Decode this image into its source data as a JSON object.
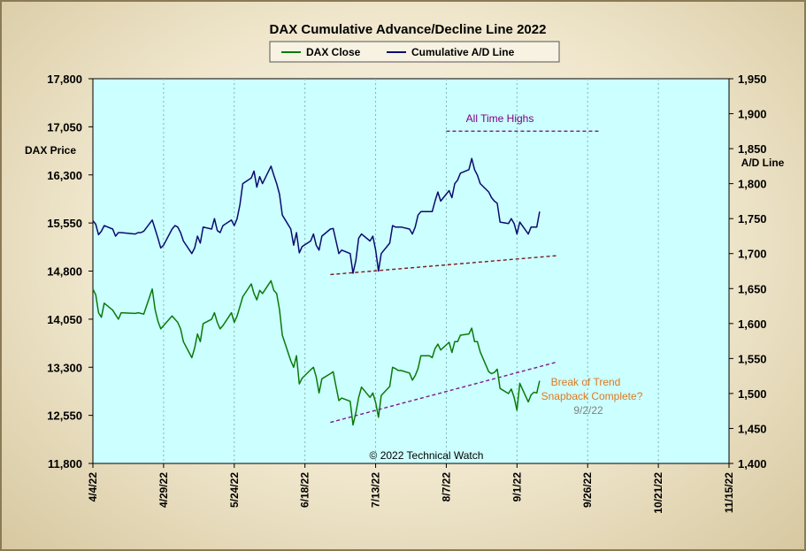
{
  "chart_data": {
    "type": "line",
    "title": "DAX Cumulative  Advance/Decline  Line  2022",
    "legend": [
      {
        "name": "DAX Close",
        "color": "#0a7a0a"
      },
      {
        "name": "Cumulative A/D Line",
        "color": "#0b0b6e"
      }
    ],
    "legend_position": "top-center",
    "plot_background": "#ccffff",
    "ylabel_left": "DAX Price",
    "ylabel_right": "A/D Line",
    "left_ylim": [
      11800,
      17800
    ],
    "right_ylim": [
      1400,
      1950
    ],
    "left_ticks": [
      "17,800",
      "17,050",
      "16,300",
      "15,550",
      "14,800",
      "14,050",
      "13,300",
      "12,550",
      "11,800"
    ],
    "right_ticks": [
      "1,950",
      "1,900",
      "1,850",
      "1,800",
      "1,750",
      "1,700",
      "1,650",
      "1,600",
      "1,550",
      "1,500",
      "1,450",
      "1,400"
    ],
    "x_ticks": [
      "4/4/22",
      "4/29/22",
      "5/24/22",
      "6/18/22",
      "7/13/22",
      "8/7/22",
      "9/1/22",
      "9/26/22",
      "10/21/22",
      "11/15/22"
    ],
    "x_range": [
      "2022-04-04",
      "2022-11-15"
    ],
    "series": [
      {
        "name": "DAX Close",
        "axis": "left",
        "color": "#0a7a0a",
        "points": [
          [
            "2022-04-04",
            14520
          ],
          [
            "2022-04-05",
            14430
          ],
          [
            "2022-04-06",
            14150
          ],
          [
            "2022-04-07",
            14080
          ],
          [
            "2022-04-08",
            14300
          ],
          [
            "2022-04-11",
            14190
          ],
          [
            "2022-04-12",
            14120
          ],
          [
            "2022-04-13",
            14050
          ],
          [
            "2022-04-14",
            14150
          ],
          [
            "2022-04-19",
            14140
          ],
          [
            "2022-04-20",
            14150
          ],
          [
            "2022-04-21",
            14140
          ],
          [
            "2022-04-22",
            14130
          ],
          [
            "2022-04-25",
            14520
          ],
          [
            "2022-04-26",
            14200
          ],
          [
            "2022-04-27",
            14020
          ],
          [
            "2022-04-28",
            13900
          ],
          [
            "2022-04-29",
            13950
          ],
          [
            "2022-05-02",
            14100
          ],
          [
            "2022-05-03",
            14050
          ],
          [
            "2022-05-04",
            14000
          ],
          [
            "2022-05-05",
            13900
          ],
          [
            "2022-05-06",
            13700
          ],
          [
            "2022-05-09",
            13450
          ],
          [
            "2022-05-10",
            13600
          ],
          [
            "2022-05-11",
            13820
          ],
          [
            "2022-05-12",
            13700
          ],
          [
            "2022-05-13",
            13980
          ],
          [
            "2022-05-16",
            14050
          ],
          [
            "2022-05-17",
            14150
          ],
          [
            "2022-05-18",
            14000
          ],
          [
            "2022-05-19",
            13900
          ],
          [
            "2022-05-20",
            13950
          ],
          [
            "2022-05-23",
            14150
          ],
          [
            "2022-05-24",
            14000
          ],
          [
            "2022-05-25",
            14100
          ],
          [
            "2022-05-26",
            14250
          ],
          [
            "2022-05-27",
            14400
          ],
          [
            "2022-05-30",
            14600
          ],
          [
            "2022-05-31",
            14450
          ],
          [
            "2022-06-01",
            14350
          ],
          [
            "2022-06-02",
            14500
          ],
          [
            "2022-06-03",
            14450
          ],
          [
            "2022-06-06",
            14650
          ],
          [
            "2022-06-07",
            14500
          ],
          [
            "2022-06-08",
            14450
          ],
          [
            "2022-06-09",
            14200
          ],
          [
            "2022-06-10",
            13800
          ],
          [
            "2022-06-13",
            13400
          ],
          [
            "2022-06-14",
            13300
          ],
          [
            "2022-06-15",
            13480
          ],
          [
            "2022-06-16",
            13040
          ],
          [
            "2022-06-17",
            13130
          ],
          [
            "2022-06-20",
            13260
          ],
          [
            "2022-06-21",
            13300
          ],
          [
            "2022-06-22",
            13150
          ],
          [
            "2022-06-23",
            12900
          ],
          [
            "2022-06-24",
            13120
          ],
          [
            "2022-06-27",
            13200
          ],
          [
            "2022-06-28",
            13230
          ],
          [
            "2022-06-29",
            13000
          ],
          [
            "2022-06-30",
            12780
          ],
          [
            "2022-07-01",
            12820
          ],
          [
            "2022-07-04",
            12770
          ],
          [
            "2022-07-05",
            12400
          ],
          [
            "2022-07-06",
            12590
          ],
          [
            "2022-07-07",
            12830
          ],
          [
            "2022-07-08",
            12990
          ],
          [
            "2022-07-11",
            12830
          ],
          [
            "2022-07-12",
            12900
          ],
          [
            "2022-07-13",
            12750
          ],
          [
            "2022-07-14",
            12520
          ],
          [
            "2022-07-15",
            12860
          ],
          [
            "2022-07-18",
            13000
          ],
          [
            "2022-07-19",
            13300
          ],
          [
            "2022-07-20",
            13280
          ],
          [
            "2022-07-21",
            13250
          ],
          [
            "2022-07-22",
            13250
          ],
          [
            "2022-07-25",
            13210
          ],
          [
            "2022-07-26",
            13100
          ],
          [
            "2022-07-27",
            13170
          ],
          [
            "2022-07-28",
            13280
          ],
          [
            "2022-07-29",
            13480
          ],
          [
            "2022-08-01",
            13480
          ],
          [
            "2022-08-02",
            13450
          ],
          [
            "2022-08-03",
            13590
          ],
          [
            "2022-08-04",
            13660
          ],
          [
            "2022-08-05",
            13570
          ],
          [
            "2022-08-08",
            13690
          ],
          [
            "2022-08-09",
            13530
          ],
          [
            "2022-08-10",
            13700
          ],
          [
            "2022-08-11",
            13700
          ],
          [
            "2022-08-12",
            13800
          ],
          [
            "2022-08-15",
            13820
          ],
          [
            "2022-08-16",
            13910
          ],
          [
            "2022-08-17",
            13700
          ],
          [
            "2022-08-18",
            13700
          ],
          [
            "2022-08-19",
            13540
          ],
          [
            "2022-08-22",
            13230
          ],
          [
            "2022-08-23",
            13200
          ],
          [
            "2022-08-24",
            13220
          ],
          [
            "2022-08-25",
            13270
          ],
          [
            "2022-08-26",
            12970
          ],
          [
            "2022-08-29",
            12890
          ],
          [
            "2022-08-30",
            12960
          ],
          [
            "2022-08-31",
            12830
          ],
          [
            "2022-09-01",
            12630
          ],
          [
            "2022-09-02",
            13050
          ],
          [
            "2022-09-05",
            12760
          ],
          [
            "2022-09-06",
            12870
          ],
          [
            "2022-09-07",
            12910
          ],
          [
            "2022-09-08",
            12900
          ],
          [
            "2022-09-09",
            13090
          ]
        ]
      },
      {
        "name": "Cumulative A/D Line",
        "axis": "right",
        "color": "#0b0b6e",
        "points": [
          [
            "2022-04-04",
            1747
          ],
          [
            "2022-04-05",
            1742
          ],
          [
            "2022-04-06",
            1727
          ],
          [
            "2022-04-07",
            1732
          ],
          [
            "2022-04-08",
            1740
          ],
          [
            "2022-04-11",
            1735
          ],
          [
            "2022-04-12",
            1725
          ],
          [
            "2022-04-13",
            1730
          ],
          [
            "2022-04-14",
            1730
          ],
          [
            "2022-04-19",
            1728
          ],
          [
            "2022-04-20",
            1730
          ],
          [
            "2022-04-21",
            1730
          ],
          [
            "2022-04-22",
            1732
          ],
          [
            "2022-04-25",
            1748
          ],
          [
            "2022-04-26",
            1735
          ],
          [
            "2022-04-27",
            1722
          ],
          [
            "2022-04-28",
            1708
          ],
          [
            "2022-04-29",
            1712
          ],
          [
            "2022-05-02",
            1735
          ],
          [
            "2022-05-03",
            1740
          ],
          [
            "2022-05-04",
            1738
          ],
          [
            "2022-05-05",
            1730
          ],
          [
            "2022-05-06",
            1718
          ],
          [
            "2022-05-09",
            1700
          ],
          [
            "2022-05-10",
            1708
          ],
          [
            "2022-05-11",
            1725
          ],
          [
            "2022-05-12",
            1715
          ],
          [
            "2022-05-13",
            1738
          ],
          [
            "2022-05-16",
            1735
          ],
          [
            "2022-05-17",
            1750
          ],
          [
            "2022-05-18",
            1733
          ],
          [
            "2022-05-19",
            1730
          ],
          [
            "2022-05-20",
            1740
          ],
          [
            "2022-05-23",
            1748
          ],
          [
            "2022-05-24",
            1740
          ],
          [
            "2022-05-25",
            1750
          ],
          [
            "2022-05-26",
            1770
          ],
          [
            "2022-05-27",
            1800
          ],
          [
            "2022-05-30",
            1808
          ],
          [
            "2022-05-31",
            1818
          ],
          [
            "2022-06-01",
            1795
          ],
          [
            "2022-06-02",
            1810
          ],
          [
            "2022-06-03",
            1800
          ],
          [
            "2022-06-06",
            1825
          ],
          [
            "2022-06-07",
            1812
          ],
          [
            "2022-06-08",
            1800
          ],
          [
            "2022-06-09",
            1785
          ],
          [
            "2022-06-10",
            1755
          ],
          [
            "2022-06-13",
            1735
          ],
          [
            "2022-06-14",
            1712
          ],
          [
            "2022-06-15",
            1730
          ],
          [
            "2022-06-16",
            1701
          ],
          [
            "2022-06-17",
            1710
          ],
          [
            "2022-06-20",
            1718
          ],
          [
            "2022-06-21",
            1728
          ],
          [
            "2022-06-22",
            1712
          ],
          [
            "2022-06-23",
            1705
          ],
          [
            "2022-06-24",
            1725
          ],
          [
            "2022-06-27",
            1735
          ],
          [
            "2022-06-28",
            1736
          ],
          [
            "2022-06-29",
            1718
          ],
          [
            "2022-06-30",
            1700
          ],
          [
            "2022-07-01",
            1705
          ],
          [
            "2022-07-04",
            1700
          ],
          [
            "2022-07-05",
            1672
          ],
          [
            "2022-07-06",
            1690
          ],
          [
            "2022-07-07",
            1722
          ],
          [
            "2022-07-08",
            1728
          ],
          [
            "2022-07-11",
            1718
          ],
          [
            "2022-07-12",
            1725
          ],
          [
            "2022-07-13",
            1705
          ],
          [
            "2022-07-14",
            1675
          ],
          [
            "2022-07-15",
            1700
          ],
          [
            "2022-07-18",
            1715
          ],
          [
            "2022-07-19",
            1740
          ],
          [
            "2022-07-20",
            1738
          ],
          [
            "2022-07-21",
            1738
          ],
          [
            "2022-07-22",
            1738
          ],
          [
            "2022-07-25",
            1735
          ],
          [
            "2022-07-26",
            1728
          ],
          [
            "2022-07-27",
            1738
          ],
          [
            "2022-07-28",
            1755
          ],
          [
            "2022-07-29",
            1760
          ],
          [
            "2022-08-01",
            1760
          ],
          [
            "2022-08-02",
            1760
          ],
          [
            "2022-08-03",
            1775
          ],
          [
            "2022-08-04",
            1788
          ],
          [
            "2022-08-05",
            1775
          ],
          [
            "2022-08-08",
            1790
          ],
          [
            "2022-08-09",
            1780
          ],
          [
            "2022-08-10",
            1800
          ],
          [
            "2022-08-11",
            1805
          ],
          [
            "2022-08-12",
            1815
          ],
          [
            "2022-08-15",
            1820
          ],
          [
            "2022-08-16",
            1836
          ],
          [
            "2022-08-17",
            1820
          ],
          [
            "2022-08-18",
            1812
          ],
          [
            "2022-08-19",
            1800
          ],
          [
            "2022-08-22",
            1788
          ],
          [
            "2022-08-23",
            1780
          ],
          [
            "2022-08-24",
            1775
          ],
          [
            "2022-08-25",
            1772
          ],
          [
            "2022-08-26",
            1745
          ],
          [
            "2022-08-29",
            1743
          ],
          [
            "2022-08-30",
            1750
          ],
          [
            "2022-08-31",
            1743
          ],
          [
            "2022-09-01",
            1728
          ],
          [
            "2022-09-02",
            1745
          ],
          [
            "2022-09-05",
            1728
          ],
          [
            "2022-09-06",
            1738
          ],
          [
            "2022-09-07",
            1738
          ],
          [
            "2022-09-08",
            1738
          ],
          [
            "2022-09-09",
            1760
          ]
        ]
      }
    ],
    "trendlines": [
      {
        "name": "ad-support-trendline",
        "axis": "right",
        "color": "#7a1a1a",
        "from": [
          "2022-06-27",
          1670
        ],
        "to": [
          "2022-09-15",
          1697
        ]
      },
      {
        "name": "ath-trendline",
        "axis": "right",
        "color": "#7a1a8a",
        "from": [
          "2022-08-07",
          1875
        ],
        "to": [
          "2022-09-30",
          1875
        ]
      },
      {
        "name": "dax-trendline",
        "axis": "left",
        "color": "#7a1a8a",
        "from": [
          "2022-06-27",
          12440
        ],
        "to": [
          "2022-09-15",
          13380
        ]
      }
    ],
    "annotations": {
      "all_time_highs": {
        "text": "All Time Highs",
        "color": "#800080"
      },
      "break_of_trend_1": {
        "text": "Break of Trend",
        "color": "#e07820"
      },
      "break_of_trend_2": {
        "text": "Snapback Complete?",
        "color": "#e07820"
      },
      "date_note": {
        "text": "9/2/22",
        "color": "#808080"
      },
      "copyright": {
        "text": "© 2022 Technical Watch",
        "color": "#000000"
      }
    },
    "grid": "vertical-dashed"
  }
}
